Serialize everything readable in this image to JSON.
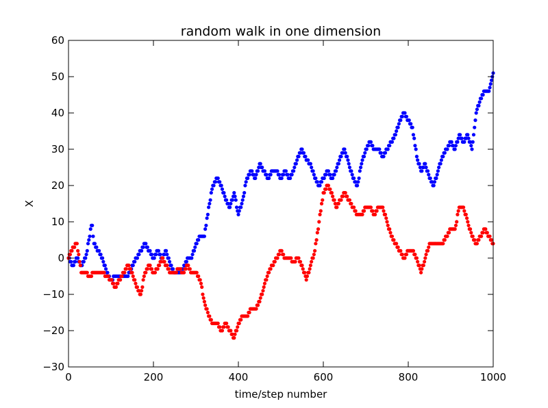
{
  "chart_data": {
    "type": "scatter",
    "title": "random walk in one dimension",
    "xlabel": "time/step number",
    "ylabel": "X",
    "xlim": [
      0,
      1000
    ],
    "ylim": [
      -30,
      60
    ],
    "xticks": [
      0,
      200,
      400,
      600,
      800,
      1000
    ],
    "yticks": [
      -30,
      -20,
      -10,
      0,
      10,
      20,
      30,
      40,
      50,
      60
    ],
    "grid": false,
    "legend": "none",
    "marker": "circle",
    "series": [
      {
        "color": "#0000ff",
        "x": [
          0,
          10,
          20,
          30,
          40,
          50,
          55,
          60,
          70,
          80,
          90,
          100,
          110,
          120,
          130,
          140,
          150,
          160,
          170,
          180,
          190,
          200,
          210,
          220,
          230,
          240,
          250,
          260,
          270,
          280,
          290,
          300,
          310,
          320,
          330,
          340,
          350,
          360,
          370,
          380,
          390,
          400,
          410,
          420,
          430,
          440,
          450,
          460,
          470,
          480,
          490,
          500,
          510,
          520,
          530,
          540,
          550,
          560,
          570,
          580,
          590,
          600,
          610,
          620,
          630,
          640,
          650,
          660,
          670,
          680,
          690,
          700,
          710,
          720,
          730,
          740,
          750,
          760,
          770,
          780,
          790,
          800,
          810,
          820,
          830,
          840,
          850,
          860,
          870,
          880,
          890,
          900,
          910,
          920,
          930,
          940,
          950,
          960,
          970,
          980,
          990,
          1000
        ],
        "y": [
          0,
          -2,
          0,
          -2,
          0,
          6,
          10,
          4,
          2,
          0,
          -4,
          -6,
          -5,
          -5,
          -5,
          -5,
          -2,
          0,
          2,
          4,
          2,
          0,
          2,
          0,
          2,
          -2,
          -4,
          -4,
          -3,
          0,
          0,
          4,
          6,
          6,
          14,
          20,
          22,
          20,
          16,
          14,
          18,
          12,
          16,
          22,
          24,
          22,
          26,
          24,
          22,
          24,
          24,
          22,
          24,
          22,
          24,
          28,
          30,
          27,
          26,
          22,
          20,
          22,
          24,
          22,
          24,
          28,
          30,
          26,
          22,
          20,
          26,
          30,
          32,
          30,
          30,
          28,
          30,
          32,
          34,
          38,
          40,
          38,
          36,
          28,
          24,
          26,
          22,
          20,
          24,
          28,
          30,
          32,
          30,
          34,
          32,
          34,
          30,
          40,
          44,
          46,
          46,
          51
        ]
      },
      {
        "color": "#ff0000",
        "x": [
          0,
          10,
          20,
          30,
          40,
          50,
          60,
          70,
          80,
          90,
          100,
          110,
          120,
          130,
          140,
          150,
          160,
          170,
          180,
          190,
          200,
          210,
          220,
          230,
          240,
          250,
          260,
          270,
          280,
          290,
          300,
          310,
          320,
          330,
          340,
          350,
          360,
          370,
          380,
          390,
          400,
          410,
          420,
          430,
          440,
          450,
          460,
          470,
          480,
          490,
          500,
          510,
          520,
          530,
          540,
          550,
          560,
          570,
          580,
          590,
          600,
          610,
          620,
          630,
          640,
          650,
          660,
          670,
          680,
          690,
          700,
          710,
          720,
          730,
          740,
          750,
          760,
          770,
          780,
          790,
          800,
          810,
          820,
          830,
          840,
          850,
          860,
          870,
          880,
          890,
          900,
          910,
          920,
          930,
          940,
          950,
          960,
          970,
          980,
          990,
          1000
        ],
        "y": [
          0,
          3,
          4,
          -4,
          -4,
          -5,
          -4,
          -4,
          -4,
          -5,
          -6,
          -8,
          -6,
          -4,
          -2,
          -4,
          -8,
          -10,
          -4,
          -2,
          -4,
          -3,
          0,
          -2,
          -4,
          -4,
          -3,
          -4,
          -2,
          -4,
          -4,
          -6,
          -12,
          -16,
          -18,
          -18,
          -20,
          -18,
          -20,
          -22,
          -18,
          -16,
          -16,
          -14,
          -14,
          -12,
          -8,
          -4,
          -2,
          0,
          2,
          0,
          0,
          -1,
          0,
          -2,
          -6,
          -2,
          2,
          10,
          18,
          20,
          18,
          14,
          16,
          18,
          16,
          14,
          12,
          12,
          14,
          14,
          12,
          14,
          14,
          10,
          6,
          4,
          2,
          0,
          2,
          2,
          0,
          -4,
          0,
          4,
          4,
          4,
          4,
          6,
          8,
          8,
          14,
          14,
          10,
          6,
          4,
          6,
          8,
          6,
          4
        ]
      }
    ]
  }
}
